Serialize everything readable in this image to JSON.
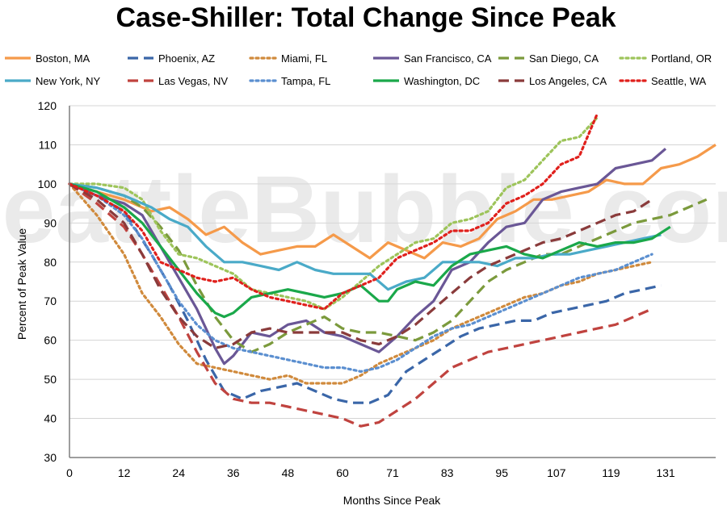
{
  "chart_data": {
    "type": "line",
    "title": "Case-Shiller: Total Change Since Peak",
    "xlabel": "Months Since Peak",
    "ylabel": "Percent of Peak Value",
    "watermark": "SeattleBubble.com",
    "xlim": [
      0,
      142
    ],
    "ylim": [
      30,
      120
    ],
    "x_ticks": [
      0,
      12,
      24,
      36,
      48,
      60,
      71,
      83,
      95,
      107,
      119,
      131
    ],
    "y_ticks": [
      30,
      40,
      50,
      60,
      70,
      80,
      90,
      100,
      110,
      120
    ],
    "grid": "horizontal",
    "legend_position": "top",
    "series": [
      {
        "name": "Boston, MA",
        "color": "#f59a4a",
        "dash": "solid",
        "x": [
          0,
          6,
          12,
          18,
          22,
          26,
          30,
          34,
          38,
          42,
          46,
          50,
          54,
          58,
          62,
          66,
          70,
          74,
          78,
          82,
          86,
          90,
          94,
          98,
          102,
          106,
          110,
          114,
          118,
          122,
          126,
          130,
          134,
          138,
          142
        ],
        "y": [
          100,
          98,
          96,
          93,
          94,
          91,
          87,
          89,
          85,
          82,
          83,
          84,
          84,
          87,
          84,
          81,
          85,
          83,
          81,
          85,
          84,
          86,
          91,
          93,
          96,
          96,
          97,
          98,
          101,
          100,
          100,
          104,
          105,
          107,
          110
        ]
      },
      {
        "name": "Phoenix, AZ",
        "color": "#3a66a8",
        "dash": "dash",
        "x": [
          0,
          6,
          12,
          18,
          22,
          26,
          30,
          34,
          38,
          42,
          46,
          50,
          54,
          58,
          62,
          66,
          70,
          74,
          78,
          82,
          86,
          90,
          94,
          98,
          102,
          106,
          110,
          114,
          118,
          122,
          126,
          130
        ],
        "y": [
          100,
          97,
          93,
          82,
          74,
          65,
          55,
          47,
          45,
          47,
          48,
          49,
          47,
          45,
          44,
          44,
          46,
          52,
          55,
          58,
          61,
          63,
          64,
          65,
          65,
          67,
          68,
          69,
          70,
          72,
          73,
          74
        ]
      },
      {
        "name": "Miami, FL",
        "color": "#d08a3c",
        "dash": "dot",
        "x": [
          0,
          6,
          12,
          16,
          20,
          24,
          28,
          32,
          36,
          40,
          44,
          48,
          52,
          56,
          60,
          64,
          68,
          72,
          76,
          80,
          84,
          88,
          92,
          96,
          100,
          104,
          108,
          112,
          116,
          120,
          124,
          128
        ],
        "y": [
          100,
          92,
          82,
          72,
          66,
          59,
          54,
          53,
          52,
          51,
          50,
          51,
          49,
          49,
          49,
          51,
          54,
          56,
          58,
          60,
          63,
          65,
          67,
          69,
          71,
          72,
          74,
          75,
          77,
          78,
          79,
          80
        ]
      },
      {
        "name": "San Francisco, CA",
        "color": "#6a5796",
        "dash": "solid",
        "x": [
          0,
          6,
          12,
          16,
          20,
          24,
          28,
          32,
          34,
          36,
          40,
          44,
          48,
          52,
          56,
          60,
          64,
          68,
          72,
          76,
          80,
          84,
          88,
          92,
          96,
          100,
          104,
          108,
          112,
          116,
          120,
          124,
          128,
          131
        ],
        "y": [
          100,
          97,
          95,
          92,
          84,
          76,
          68,
          58,
          54,
          56,
          62,
          61,
          64,
          65,
          62,
          61,
          59,
          57,
          61,
          66,
          70,
          78,
          80,
          85,
          89,
          90,
          96,
          98,
          99,
          100,
          104,
          105,
          106,
          109
        ]
      },
      {
        "name": "San Diego, CA",
        "color": "#7b9a3c",
        "dash": "dash",
        "x": [
          0,
          6,
          12,
          16,
          20,
          24,
          28,
          32,
          36,
          40,
          44,
          48,
          52,
          56,
          60,
          64,
          68,
          72,
          76,
          80,
          84,
          88,
          92,
          96,
          100,
          104,
          108,
          112,
          116,
          120,
          124,
          128,
          132,
          136,
          140
        ],
        "y": [
          100,
          99,
          97,
          94,
          89,
          83,
          74,
          66,
          60,
          57,
          59,
          62,
          64,
          66,
          63,
          62,
          62,
          61,
          60,
          62,
          65,
          70,
          75,
          78,
          80,
          82,
          82,
          84,
          86,
          88,
          90,
          91,
          92,
          94,
          96
        ]
      },
      {
        "name": "Portland, OR",
        "color": "#9dc45a",
        "dash": "dot",
        "x": [
          0,
          6,
          12,
          16,
          20,
          24,
          28,
          32,
          36,
          40,
          44,
          48,
          52,
          56,
          60,
          64,
          68,
          72,
          76,
          80,
          84,
          88,
          92,
          96,
          100,
          104,
          108,
          112,
          116
        ],
        "y": [
          100,
          100,
          99,
          96,
          88,
          82,
          81,
          79,
          77,
          73,
          72,
          71,
          70,
          68,
          71,
          75,
          79,
          82,
          85,
          86,
          90,
          91,
          93,
          99,
          101,
          106,
          111,
          112,
          117
        ]
      },
      {
        "name": "New York, NY",
        "color": "#4aaac8",
        "dash": "solid",
        "x": [
          0,
          6,
          12,
          18,
          22,
          26,
          30,
          34,
          38,
          42,
          46,
          50,
          54,
          58,
          62,
          66,
          70,
          74,
          78,
          82,
          86,
          90,
          94,
          98,
          102,
          106,
          110,
          114,
          118,
          122,
          126,
          130
        ],
        "y": [
          100,
          99,
          97,
          94,
          91,
          89,
          84,
          80,
          80,
          79,
          78,
          80,
          78,
          77,
          77,
          77,
          73,
          75,
          76,
          80,
          80,
          80,
          79,
          81,
          81,
          82,
          82,
          83,
          84,
          85,
          86,
          87
        ]
      },
      {
        "name": "Las Vegas, NV",
        "color": "#c0433f",
        "dash": "dash",
        "x": [
          0,
          6,
          12,
          16,
          20,
          24,
          28,
          32,
          36,
          40,
          44,
          48,
          52,
          56,
          60,
          64,
          68,
          72,
          76,
          80,
          84,
          88,
          92,
          96,
          100,
          104,
          108,
          112,
          116,
          120,
          124,
          128
        ],
        "y": [
          100,
          95,
          89,
          82,
          74,
          66,
          57,
          49,
          45,
          44,
          44,
          43,
          42,
          41,
          40,
          38,
          39,
          42,
          45,
          49,
          53,
          55,
          57,
          58,
          59,
          60,
          61,
          62,
          63,
          64,
          66,
          68
        ]
      },
      {
        "name": "Tampa, FL",
        "color": "#5b8fd0",
        "dash": "dot",
        "x": [
          0,
          6,
          12,
          16,
          20,
          24,
          28,
          32,
          36,
          40,
          44,
          48,
          52,
          56,
          60,
          64,
          68,
          72,
          76,
          80,
          84,
          88,
          92,
          96,
          100,
          104,
          108,
          112,
          116,
          120,
          124,
          128
        ],
        "y": [
          100,
          97,
          92,
          86,
          78,
          70,
          64,
          60,
          58,
          57,
          56,
          55,
          54,
          53,
          53,
          52,
          53,
          55,
          58,
          61,
          63,
          64,
          66,
          68,
          70,
          72,
          74,
          76,
          77,
          78,
          80,
          82
        ]
      },
      {
        "name": "Washington, DC",
        "color": "#1aa84a",
        "dash": "solid",
        "x": [
          0,
          6,
          12,
          16,
          20,
          24,
          28,
          32,
          34,
          36,
          40,
          44,
          48,
          52,
          56,
          60,
          64,
          68,
          70,
          72,
          76,
          80,
          84,
          88,
          92,
          96,
          100,
          104,
          108,
          112,
          116,
          120,
          124,
          128,
          132
        ],
        "y": [
          100,
          98,
          94,
          90,
          84,
          78,
          72,
          67,
          66,
          67,
          71,
          72,
          73,
          72,
          71,
          72,
          74,
          70,
          70,
          73,
          75,
          74,
          79,
          82,
          83,
          84,
          82,
          81,
          83,
          85,
          84,
          85,
          85,
          86,
          89
        ]
      },
      {
        "name": "Los Angeles, CA",
        "color": "#8a3b3b",
        "dash": "dash",
        "x": [
          0,
          6,
          12,
          16,
          20,
          24,
          28,
          32,
          36,
          40,
          44,
          48,
          52,
          56,
          60,
          64,
          68,
          72,
          76,
          80,
          84,
          88,
          92,
          96,
          100,
          104,
          108,
          112,
          116,
          120,
          124,
          128
        ],
        "y": [
          100,
          96,
          90,
          82,
          73,
          66,
          61,
          58,
          59,
          62,
          63,
          62,
          62,
          62,
          62,
          60,
          59,
          61,
          64,
          68,
          72,
          76,
          79,
          81,
          83,
          85,
          86,
          88,
          90,
          92,
          93,
          96
        ]
      },
      {
        "name": "Seattle, WA",
        "color": "#e0201c",
        "dash": "dot",
        "x": [
          0,
          6,
          12,
          16,
          20,
          24,
          28,
          32,
          36,
          40,
          44,
          48,
          52,
          56,
          60,
          64,
          68,
          72,
          76,
          80,
          84,
          88,
          92,
          96,
          100,
          104,
          108,
          112,
          116
        ],
        "y": [
          100,
          97,
          93,
          88,
          80,
          78,
          76,
          75,
          76,
          73,
          71,
          70,
          69,
          68,
          72,
          74,
          76,
          81,
          83,
          85,
          88,
          88,
          90,
          95,
          97,
          100,
          105,
          107,
          118
        ]
      }
    ]
  }
}
